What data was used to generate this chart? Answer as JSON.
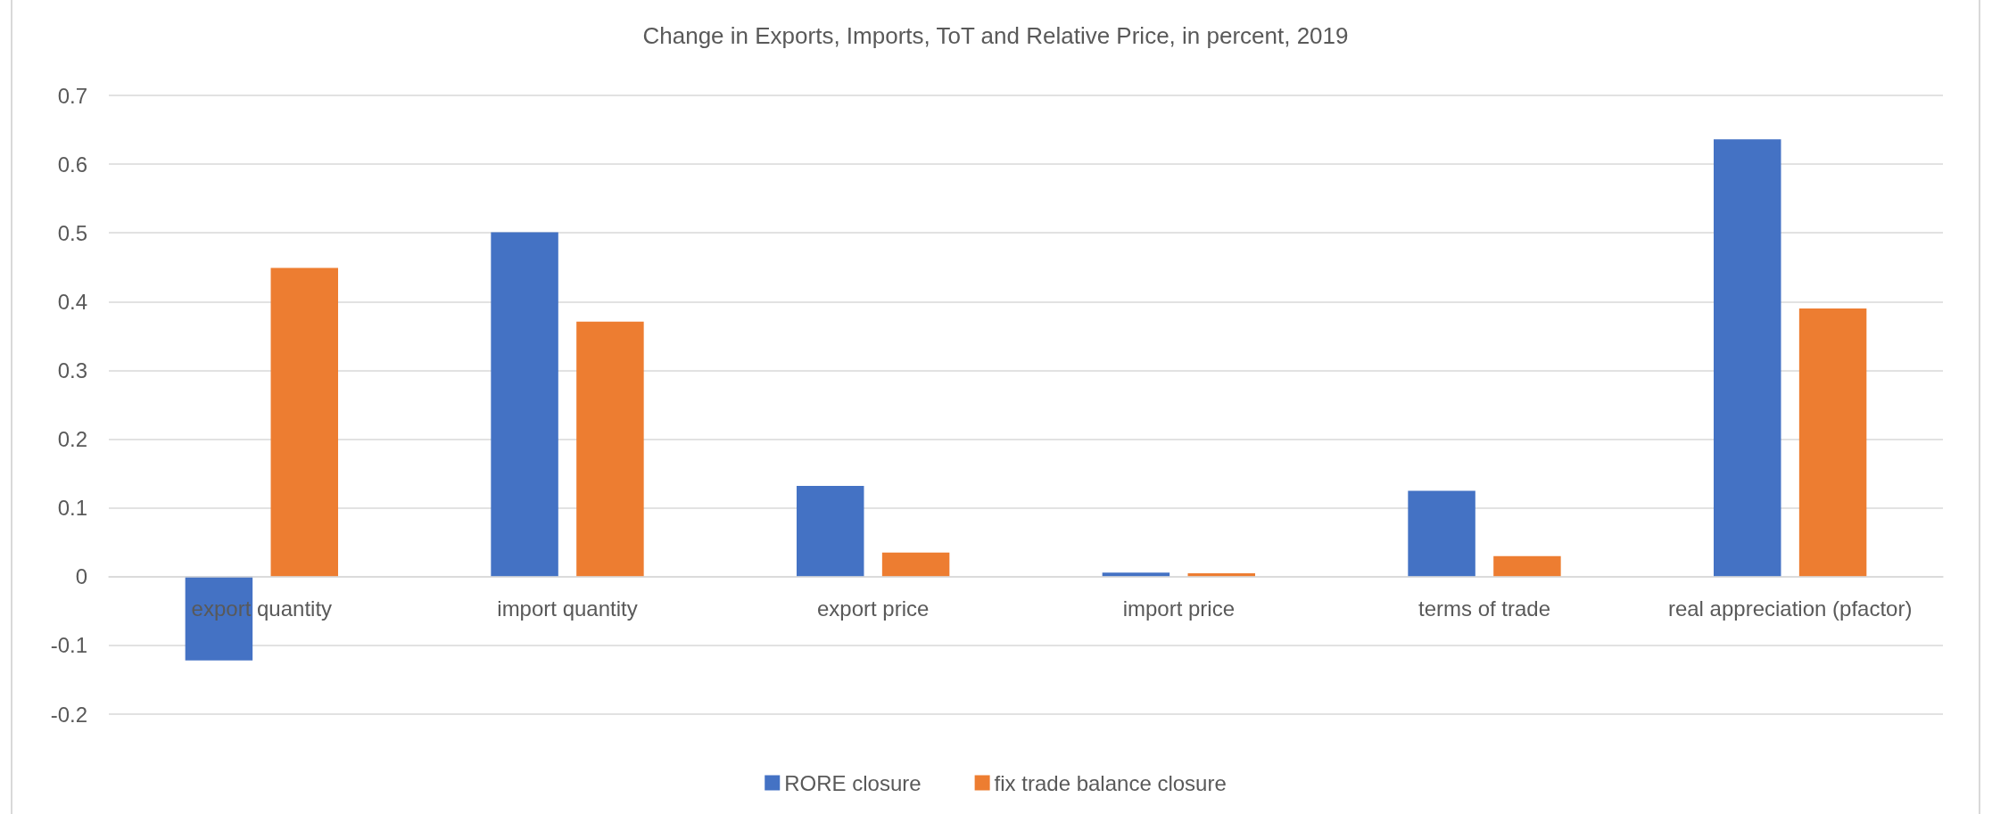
{
  "chart_data": {
    "type": "bar",
    "title": "Change in Exports, Imports, ToT and Relative Price, in percent, 2019",
    "categories": [
      "export quantity",
      "import quantity",
      "export price",
      "import price",
      "terms of trade",
      "real appreciation (pfactor)"
    ],
    "series": [
      {
        "name": "RORE closure",
        "color": "#4472c4",
        "values": [
          -0.122,
          0.501,
          0.132,
          0.006,
          0.125,
          0.636
        ]
      },
      {
        "name": "fix trade balance closure",
        "color": "#ed7d31",
        "values": [
          0.449,
          0.371,
          0.035,
          0.005,
          0.03,
          0.39
        ]
      }
    ],
    "ylim": [
      -0.2,
      0.7
    ],
    "yticks": [
      -0.2,
      -0.1,
      0,
      0.1,
      0.2,
      0.3,
      0.4,
      0.5,
      0.6,
      0.7
    ],
    "grid": "y",
    "legend": "bottom"
  }
}
